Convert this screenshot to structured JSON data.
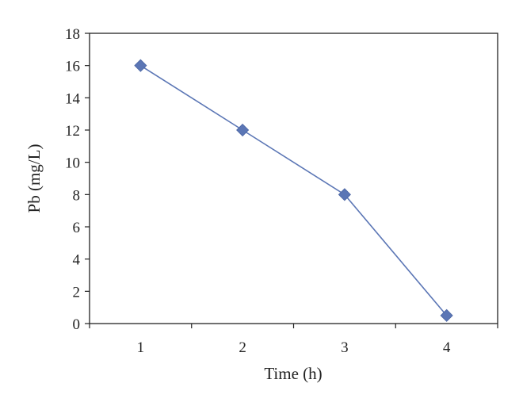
{
  "chart_data": {
    "type": "line",
    "title": "",
    "xlabel": "Time (h)",
    "ylabel": "Pb (mg/L)",
    "x": [
      1,
      2,
      3,
      4
    ],
    "xlim": [
      0.5,
      4.5
    ],
    "ylim": [
      0,
      18
    ],
    "x_ticks": [
      "1",
      "2",
      "3",
      "4"
    ],
    "y_ticks": [
      "0",
      "2",
      "4",
      "6",
      "8",
      "10",
      "12",
      "14",
      "16",
      "18"
    ],
    "series": [
      {
        "values": [
          16,
          12,
          8,
          0.5
        ],
        "marker": "diamond",
        "color": "#5b76b5"
      }
    ],
    "grid": false,
    "legend": "none",
    "colors": {
      "series": "#5b76b5",
      "axis": "#222222"
    }
  }
}
